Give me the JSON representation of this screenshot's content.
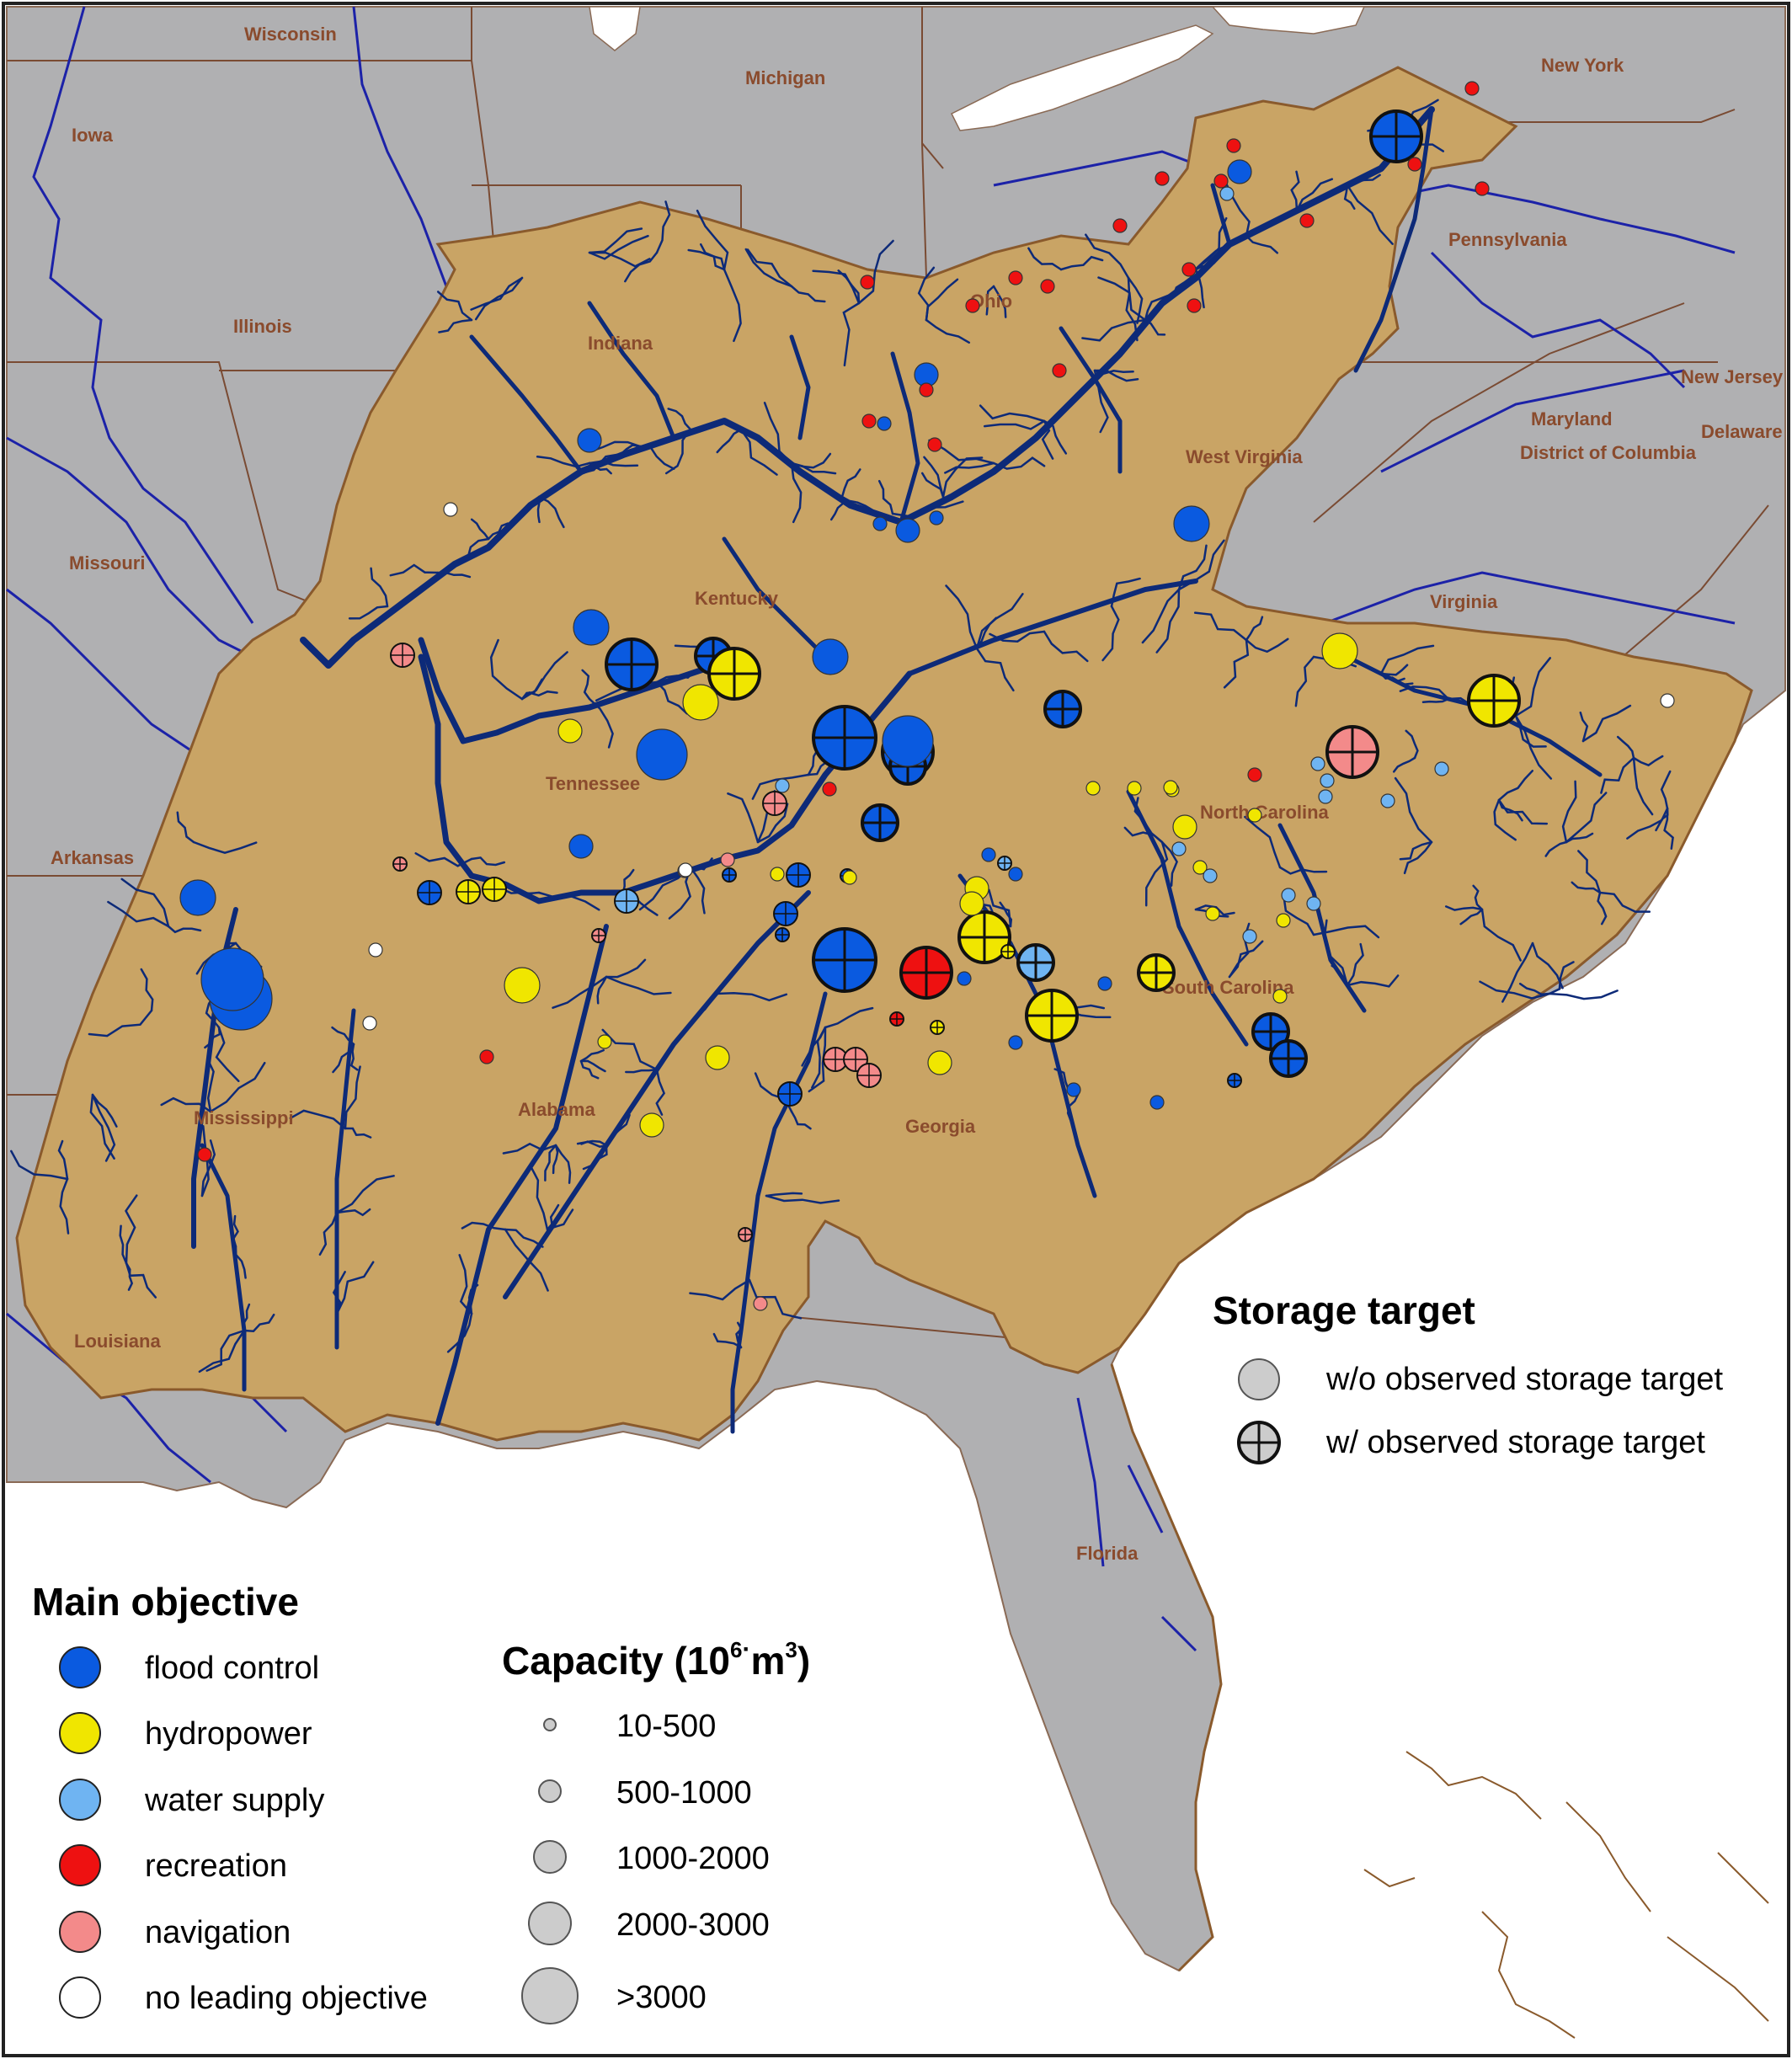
{
  "states": [
    {
      "id": "wisconsin",
      "label": "Wisconsin"
    },
    {
      "id": "michigan",
      "label": "Michigan"
    },
    {
      "id": "new-york",
      "label": "New York"
    },
    {
      "id": "iowa",
      "label": "Iowa"
    },
    {
      "id": "illinois",
      "label": "Illinois"
    },
    {
      "id": "indiana",
      "label": "Indiana"
    },
    {
      "id": "ohio",
      "label": "Ohio"
    },
    {
      "id": "pennsylvania",
      "label": "Pennsylvania"
    },
    {
      "id": "new-jersey",
      "label": "New Jersey"
    },
    {
      "id": "maryland",
      "label": "Maryland"
    },
    {
      "id": "delaware",
      "label": "Delaware"
    },
    {
      "id": "district-of-columbia",
      "label": "District of Columbia"
    },
    {
      "id": "west-virginia",
      "label": "West Virginia"
    },
    {
      "id": "missouri",
      "label": "Missouri"
    },
    {
      "id": "kentucky",
      "label": "Kentucky"
    },
    {
      "id": "virginia",
      "label": "Virginia"
    },
    {
      "id": "tennessee",
      "label": "Tennessee"
    },
    {
      "id": "north-carolina",
      "label": "North Carolina"
    },
    {
      "id": "arkansas",
      "label": "Arkansas"
    },
    {
      "id": "south-carolina",
      "label": "South Carolina"
    },
    {
      "id": "mississippi",
      "label": "Mississippi"
    },
    {
      "id": "alabama",
      "label": "Alabama"
    },
    {
      "id": "georgia",
      "label": "Georgia"
    },
    {
      "id": "louisiana",
      "label": "Louisiana"
    },
    {
      "id": "florida",
      "label": "Florida"
    }
  ],
  "colors": {
    "land": "#b0b0b2",
    "basin": "#c9a465",
    "basin_outline": "#8a5a2c",
    "rivers": "#0d2a78",
    "state_borders": "#7a4b33",
    "major_rivers": "#1c22a8",
    "lakes": "#ffffff",
    "flood_control": "#0a5ae0",
    "hydropower": "#f0e600",
    "water_supply": "#6fb4f2",
    "recreation": "#ee1111",
    "navigation": "#f38a8a",
    "no_leading_objective": "#ffffff",
    "legend_marker": "#cccccc"
  },
  "legend_objective": {
    "title": "Main objective",
    "items": [
      {
        "key": "flood_control",
        "label": "flood control"
      },
      {
        "key": "hydropower",
        "label": "hydropower"
      },
      {
        "key": "water_supply",
        "label": "water supply"
      },
      {
        "key": "recreation",
        "label": "recreation"
      },
      {
        "key": "navigation",
        "label": "navigation"
      },
      {
        "key": "no_leading_objective",
        "label": "no leading objective"
      }
    ]
  },
  "legend_capacity": {
    "title_main": "Capacity (10",
    "title_sup": "6",
    "title_dot": "·",
    "title_unit": "m",
    "title_sup2": "3",
    "title_end": ")",
    "items": [
      {
        "label": "10-500",
        "class": 1
      },
      {
        "label": "500-1000",
        "class": 2
      },
      {
        "label": "1000-2000",
        "class": 3
      },
      {
        "label": "2000-3000",
        "class": 4
      },
      {
        "label": ">3000",
        "class": 5
      }
    ]
  },
  "legend_storage": {
    "title": "Storage target",
    "items": [
      {
        "label": "w/o observed storage target",
        "target": false
      },
      {
        "label": "w/ observed storage target",
        "target": true
      }
    ]
  },
  "reservoirs": [
    {
      "obj": "flood_control",
      "cap": 4,
      "target": true
    },
    {
      "obj": "flood_control",
      "cap": 5,
      "target": true
    },
    {
      "obj": "flood_control",
      "cap": 5,
      "target": true
    },
    {
      "obj": "flood_control",
      "cap": 4,
      "target": true
    },
    {
      "obj": "flood_control",
      "cap": 4,
      "target": true
    },
    {
      "obj": "flood_control",
      "cap": 3,
      "target": true
    },
    {
      "obj": "flood_control",
      "cap": 3,
      "target": true
    },
    {
      "obj": "flood_control",
      "cap": 3,
      "target": true
    },
    {
      "obj": "flood_control",
      "cap": 3,
      "target": true
    },
    {
      "obj": "flood_control",
      "cap": 3,
      "target": true
    },
    {
      "obj": "flood_control",
      "cap": 3,
      "target": true
    },
    {
      "obj": "flood_control",
      "cap": 5,
      "target": false
    },
    {
      "obj": "flood_control",
      "cap": 5,
      "target": false
    },
    {
      "obj": "flood_control",
      "cap": 4,
      "target": false
    },
    {
      "obj": "flood_control",
      "cap": 4,
      "target": false
    },
    {
      "obj": "flood_control",
      "cap": 3,
      "target": false
    },
    {
      "obj": "flood_control",
      "cap": 3,
      "target": false
    },
    {
      "obj": "flood_control",
      "cap": 3,
      "target": false
    },
    {
      "obj": "flood_control",
      "cap": 3,
      "target": false
    },
    {
      "obj": "flood_control",
      "cap": 2,
      "target": false
    },
    {
      "obj": "flood_control",
      "cap": 2,
      "target": false
    },
    {
      "obj": "flood_control",
      "cap": 2,
      "target": false
    },
    {
      "obj": "flood_control",
      "cap": 2,
      "target": false
    },
    {
      "obj": "flood_control",
      "cap": 2,
      "target": true
    },
    {
      "obj": "flood_control",
      "cap": 2,
      "target": true
    },
    {
      "obj": "flood_control",
      "cap": 2,
      "target": true
    },
    {
      "obj": "flood_control",
      "cap": 2,
      "target": true
    },
    {
      "obj": "flood_control",
      "cap": 2,
      "target": false
    },
    {
      "obj": "flood_control",
      "cap": 1,
      "target": false
    },
    {
      "obj": "flood_control",
      "cap": 1,
      "target": false
    },
    {
      "obj": "flood_control",
      "cap": 1,
      "target": false
    },
    {
      "obj": "flood_control",
      "cap": 1,
      "target": false
    },
    {
      "obj": "flood_control",
      "cap": 1,
      "target": false
    },
    {
      "obj": "flood_control",
      "cap": 1,
      "target": false
    },
    {
      "obj": "flood_control",
      "cap": 1,
      "target": false
    },
    {
      "obj": "flood_control",
      "cap": 1,
      "target": false
    },
    {
      "obj": "flood_control",
      "cap": 1,
      "target": false
    },
    {
      "obj": "flood_control",
      "cap": 1,
      "target": false
    },
    {
      "obj": "flood_control",
      "cap": 1,
      "target": true
    },
    {
      "obj": "flood_control",
      "cap": 1,
      "target": true
    },
    {
      "obj": "flood_control",
      "cap": 1,
      "target": true
    },
    {
      "obj": "flood_control",
      "cap": 1,
      "target": true
    },
    {
      "obj": "hydropower",
      "cap": 4,
      "target": true
    },
    {
      "obj": "hydropower",
      "cap": 4,
      "target": true
    },
    {
      "obj": "hydropower",
      "cap": 4,
      "target": true
    },
    {
      "obj": "hydropower",
      "cap": 4,
      "target": true
    },
    {
      "obj": "hydropower",
      "cap": 3,
      "target": true
    },
    {
      "obj": "hydropower",
      "cap": 2,
      "target": true
    },
    {
      "obj": "hydropower",
      "cap": 2,
      "target": true
    },
    {
      "obj": "hydropower",
      "cap": 3,
      "target": false
    },
    {
      "obj": "hydropower",
      "cap": 3,
      "target": false
    },
    {
      "obj": "hydropower",
      "cap": 3,
      "target": false
    },
    {
      "obj": "hydropower",
      "cap": 2,
      "target": false
    },
    {
      "obj": "hydropower",
      "cap": 2,
      "target": false
    },
    {
      "obj": "hydropower",
      "cap": 2,
      "target": false
    },
    {
      "obj": "hydropower",
      "cap": 2,
      "target": false
    },
    {
      "obj": "hydropower",
      "cap": 2,
      "target": false
    },
    {
      "obj": "hydropower",
      "cap": 2,
      "target": false
    },
    {
      "obj": "hydropower",
      "cap": 2,
      "target": false
    },
    {
      "obj": "hydropower",
      "cap": 1,
      "target": false
    },
    {
      "obj": "hydropower",
      "cap": 1,
      "target": false
    },
    {
      "obj": "hydropower",
      "cap": 1,
      "target": false
    },
    {
      "obj": "hydropower",
      "cap": 1,
      "target": false
    },
    {
      "obj": "hydropower",
      "cap": 1,
      "target": false
    },
    {
      "obj": "hydropower",
      "cap": 1,
      "target": false
    },
    {
      "obj": "hydropower",
      "cap": 1,
      "target": false
    },
    {
      "obj": "hydropower",
      "cap": 1,
      "target": false
    },
    {
      "obj": "hydropower",
      "cap": 1,
      "target": false
    },
    {
      "obj": "hydropower",
      "cap": 1,
      "target": false
    },
    {
      "obj": "hydropower",
      "cap": 1,
      "target": false
    },
    {
      "obj": "hydropower",
      "cap": 1,
      "target": false
    },
    {
      "obj": "hydropower",
      "cap": 1,
      "target": true
    },
    {
      "obj": "hydropower",
      "cap": 1,
      "target": true
    },
    {
      "obj": "water_supply",
      "cap": 3,
      "target": true
    },
    {
      "obj": "water_supply",
      "cap": 2,
      "target": true
    },
    {
      "obj": "water_supply",
      "cap": 1,
      "target": false
    },
    {
      "obj": "water_supply",
      "cap": 1,
      "target": false
    },
    {
      "obj": "water_supply",
      "cap": 1,
      "target": false
    },
    {
      "obj": "water_supply",
      "cap": 1,
      "target": false
    },
    {
      "obj": "water_supply",
      "cap": 1,
      "target": false
    },
    {
      "obj": "water_supply",
      "cap": 1,
      "target": false
    },
    {
      "obj": "water_supply",
      "cap": 1,
      "target": false
    },
    {
      "obj": "water_supply",
      "cap": 1,
      "target": false
    },
    {
      "obj": "water_supply",
      "cap": 1,
      "target": false
    },
    {
      "obj": "water_supply",
      "cap": 1,
      "target": false
    },
    {
      "obj": "water_supply",
      "cap": 1,
      "target": false
    },
    {
      "obj": "water_supply",
      "cap": 1,
      "target": false
    },
    {
      "obj": "water_supply",
      "cap": 1,
      "target": false
    },
    {
      "obj": "water_supply",
      "cap": 1,
      "target": false
    },
    {
      "obj": "water_supply",
      "cap": 1,
      "target": true
    },
    {
      "obj": "recreation",
      "cap": 4,
      "target": true
    },
    {
      "obj": "recreation",
      "cap": 1,
      "target": true
    },
    {
      "obj": "recreation",
      "cap": 1,
      "target": false
    },
    {
      "obj": "recreation",
      "cap": 1,
      "target": false
    },
    {
      "obj": "recreation",
      "cap": 1,
      "target": false
    },
    {
      "obj": "recreation",
      "cap": 1,
      "target": false
    },
    {
      "obj": "recreation",
      "cap": 1,
      "target": false
    },
    {
      "obj": "recreation",
      "cap": 1,
      "target": false
    },
    {
      "obj": "recreation",
      "cap": 1,
      "target": false
    },
    {
      "obj": "recreation",
      "cap": 1,
      "target": false
    },
    {
      "obj": "recreation",
      "cap": 1,
      "target": false
    },
    {
      "obj": "recreation",
      "cap": 1,
      "target": false
    },
    {
      "obj": "recreation",
      "cap": 1,
      "target": false
    },
    {
      "obj": "recreation",
      "cap": 1,
      "target": false
    },
    {
      "obj": "recreation",
      "cap": 1,
      "target": false
    },
    {
      "obj": "recreation",
      "cap": 1,
      "target": false
    },
    {
      "obj": "recreation",
      "cap": 1,
      "target": false
    },
    {
      "obj": "recreation",
      "cap": 1,
      "target": false
    },
    {
      "obj": "recreation",
      "cap": 1,
      "target": false
    },
    {
      "obj": "recreation",
      "cap": 1,
      "target": false
    },
    {
      "obj": "recreation",
      "cap": 1,
      "target": false
    },
    {
      "obj": "recreation",
      "cap": 1,
      "target": false
    },
    {
      "obj": "recreation",
      "cap": 1,
      "target": false
    },
    {
      "obj": "recreation",
      "cap": 1,
      "target": false
    },
    {
      "obj": "navigation",
      "cap": 4,
      "target": true
    },
    {
      "obj": "navigation",
      "cap": 2,
      "target": true
    },
    {
      "obj": "navigation",
      "cap": 2,
      "target": true
    },
    {
      "obj": "navigation",
      "cap": 2,
      "target": true
    },
    {
      "obj": "navigation",
      "cap": 2,
      "target": true
    },
    {
      "obj": "navigation",
      "cap": 2,
      "target": true
    },
    {
      "obj": "navigation",
      "cap": 1,
      "target": true
    },
    {
      "obj": "navigation",
      "cap": 1,
      "target": true
    },
    {
      "obj": "navigation",
      "cap": 1,
      "target": true
    },
    {
      "obj": "navigation",
      "cap": 1,
      "target": false
    },
    {
      "obj": "navigation",
      "cap": 1,
      "target": false
    },
    {
      "obj": "navigation",
      "cap": 1,
      "target": false
    },
    {
      "obj": "no_leading_objective",
      "cap": 1,
      "target": false
    },
    {
      "obj": "no_leading_objective",
      "cap": 1,
      "target": false
    },
    {
      "obj": "no_leading_objective",
      "cap": 1,
      "target": false
    },
    {
      "obj": "no_leading_objective",
      "cap": 1,
      "target": false
    },
    {
      "obj": "no_leading_objective",
      "cap": 1,
      "target": false
    }
  ]
}
